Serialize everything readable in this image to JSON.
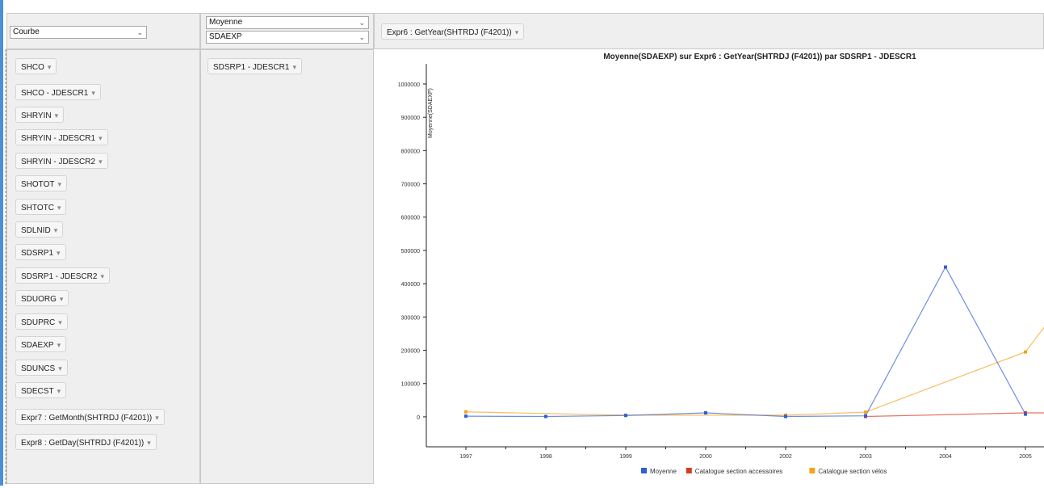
{
  "chart_type_select": {
    "value": "Courbe"
  },
  "aggregate_select": {
    "value": "Moyenne"
  },
  "measure_select": {
    "value": "SDAEXP"
  },
  "x_axis_field": "Expr6 : GetYear(SHTRDJ (F4201))",
  "series_field": "SDSRP1 - JDESCR1",
  "available_fields": [
    "SHCO",
    "SHCO - JDESCR1",
    "SHRYIN",
    "SHRYIN - JDESCR1",
    "SHRYIN - JDESCR2",
    "SHOTOT",
    "SHTOTC",
    "SDLNID",
    "SDSRP1",
    "SDSRP1 - JDESCR2",
    "SDUORG",
    "SDUPRC",
    "SDAEXP",
    "SDUNCS",
    "SDECST",
    "Expr7 : GetMonth(SHTRDJ (F4201))",
    "Expr8 : GetDay(SHTRDJ (F4201))"
  ],
  "colors": {
    "moyenne": "#2f5fd6",
    "accessoires": "#d93b20",
    "velos": "#f5a21b",
    "accent": "#4a90d9"
  },
  "chart_data": {
    "type": "line",
    "title": "Moyenne(SDAEXP) sur Expr6 : GetYear(SHTRDJ (F4201)) par SDSRP1 - JDESCR1",
    "ylabel": "Moyenne(SDAEXP)",
    "xlabel": "",
    "categories": [
      "1997",
      "1998",
      "1999",
      "2000",
      "2002",
      "2003",
      "2004",
      "2005"
    ],
    "yticks": [
      "0",
      "100000",
      "200000",
      "300000",
      "400000",
      "500000",
      "600000",
      "700000",
      "800000",
      "900000",
      "1000000"
    ],
    "ylim": [
      -90000,
      1080000
    ],
    "legend_position": "bottom",
    "series": [
      {
        "name": "Moyenne",
        "color": "#2f5fd6",
        "points": [
          [
            0,
            2000
          ],
          [
            1,
            1000
          ],
          [
            2,
            4000
          ],
          [
            3,
            12000
          ],
          [
            4,
            1000
          ],
          [
            5,
            3000
          ],
          [
            6,
            450000
          ],
          [
            7,
            8000
          ]
        ]
      },
      {
        "name": "Catalogue section accessoires",
        "color": "#d93b20",
        "points": [
          [
            5,
            1000
          ],
          [
            7,
            12000
          ],
          [
            7.6,
            12000
          ]
        ]
      },
      {
        "name": "Catalogue section vélos",
        "color": "#f5a21b",
        "points": [
          [
            0,
            15000
          ],
          [
            2,
            5000
          ],
          [
            4,
            5000
          ],
          [
            5,
            14000
          ],
          [
            7,
            195000
          ],
          [
            7.6,
            385000
          ]
        ]
      }
    ]
  }
}
